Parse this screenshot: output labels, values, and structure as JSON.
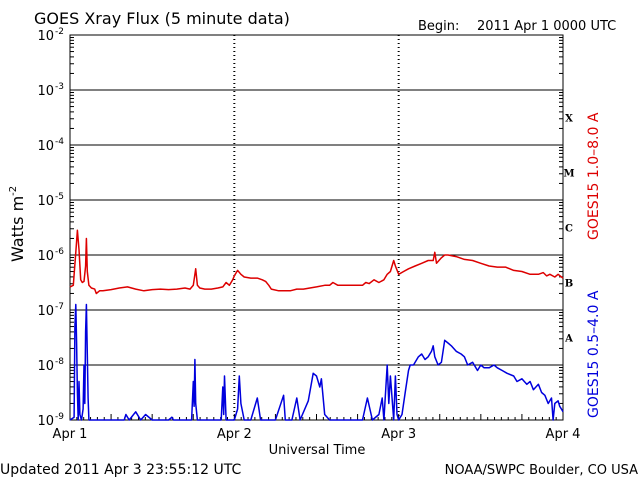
{
  "chart_data": {
    "type": "line",
    "title": "GOES Xray Flux (5 minute data)",
    "begin_label": "Begin:",
    "begin_value": "2011 Apr 1 0000 UTC",
    "xlabel": "Universal Time",
    "ylabel": "Watts m",
    "ylabel_exponent": "-2",
    "log_scale_y": true,
    "ylim_exponent": [
      -9,
      -2
    ],
    "y_ticks": [
      {
        "mant": "10",
        "exp": "-2",
        "value_exp": -2
      },
      {
        "mant": "10",
        "exp": "-3",
        "value_exp": -3
      },
      {
        "mant": "10",
        "exp": "-4",
        "value_exp": -4
      },
      {
        "mant": "10",
        "exp": "-5",
        "value_exp": -5
      },
      {
        "mant": "10",
        "exp": "-6",
        "value_exp": -6
      },
      {
        "mant": "10",
        "exp": "-7",
        "value_exp": -7
      },
      {
        "mant": "10",
        "exp": "-8",
        "value_exp": -8
      },
      {
        "mant": "10",
        "exp": "-9",
        "value_exp": -9
      }
    ],
    "xlim_days": [
      0,
      3
    ],
    "x_ticks": [
      {
        "label": "Apr 1",
        "day": 0
      },
      {
        "label": "Apr 2",
        "day": 1
      },
      {
        "label": "Apr 3",
        "day": 2
      },
      {
        "label": "Apr 4",
        "day": 3
      }
    ],
    "flare_classes": [
      {
        "label": "X",
        "value_exp": -3.5
      },
      {
        "label": "M",
        "value_exp": -4.5
      },
      {
        "label": "C",
        "value_exp": -5.5
      },
      {
        "label": "B",
        "value_exp": -6.5
      },
      {
        "label": "A",
        "value_exp": -7.5
      }
    ],
    "series": [
      {
        "name": "GOES15 1.0–8.0 A",
        "color": "#dd0000",
        "points": [
          [
            0.0,
            -6.58
          ],
          [
            0.02,
            -6.55
          ],
          [
            0.035,
            -5.95
          ],
          [
            0.045,
            -5.55
          ],
          [
            0.055,
            -5.9
          ],
          [
            0.065,
            -6.45
          ],
          [
            0.075,
            -6.5
          ],
          [
            0.085,
            -6.48
          ],
          [
            0.095,
            -6.2
          ],
          [
            0.1,
            -5.7
          ],
          [
            0.105,
            -6.3
          ],
          [
            0.115,
            -6.55
          ],
          [
            0.13,
            -6.6
          ],
          [
            0.15,
            -6.62
          ],
          [
            0.16,
            -6.7
          ],
          [
            0.18,
            -6.65
          ],
          [
            0.2,
            -6.65
          ],
          [
            0.25,
            -6.63
          ],
          [
            0.3,
            -6.6
          ],
          [
            0.35,
            -6.58
          ],
          [
            0.4,
            -6.62
          ],
          [
            0.45,
            -6.65
          ],
          [
            0.5,
            -6.63
          ],
          [
            0.55,
            -6.62
          ],
          [
            0.6,
            -6.63
          ],
          [
            0.65,
            -6.62
          ],
          [
            0.7,
            -6.6
          ],
          [
            0.73,
            -6.62
          ],
          [
            0.75,
            -6.55
          ],
          [
            0.765,
            -6.25
          ],
          [
            0.775,
            -6.55
          ],
          [
            0.79,
            -6.6
          ],
          [
            0.82,
            -6.62
          ],
          [
            0.86,
            -6.62
          ],
          [
            0.9,
            -6.6
          ],
          [
            0.93,
            -6.58
          ],
          [
            0.95,
            -6.5
          ],
          [
            0.97,
            -6.55
          ],
          [
            0.99,
            -6.45
          ],
          [
            1.0,
            -6.38
          ],
          [
            1.02,
            -6.28
          ],
          [
            1.04,
            -6.35
          ],
          [
            1.06,
            -6.4
          ],
          [
            1.1,
            -6.42
          ],
          [
            1.14,
            -6.42
          ],
          [
            1.17,
            -6.45
          ],
          [
            1.19,
            -6.48
          ],
          [
            1.21,
            -6.55
          ],
          [
            1.225,
            -6.62
          ],
          [
            1.27,
            -6.65
          ],
          [
            1.3,
            -6.65
          ],
          [
            1.34,
            -6.65
          ],
          [
            1.38,
            -6.62
          ],
          [
            1.42,
            -6.62
          ],
          [
            1.46,
            -6.6
          ],
          [
            1.5,
            -6.58
          ],
          [
            1.55,
            -6.55
          ],
          [
            1.58,
            -6.55
          ],
          [
            1.6,
            -6.5
          ],
          [
            1.63,
            -6.55
          ],
          [
            1.66,
            -6.55
          ],
          [
            1.7,
            -6.55
          ],
          [
            1.74,
            -6.55
          ],
          [
            1.78,
            -6.55
          ],
          [
            1.8,
            -6.5
          ],
          [
            1.82,
            -6.52
          ],
          [
            1.85,
            -6.45
          ],
          [
            1.88,
            -6.5
          ],
          [
            1.91,
            -6.45
          ],
          [
            1.93,
            -6.35
          ],
          [
            1.95,
            -6.3
          ],
          [
            1.97,
            -6.1
          ],
          [
            1.98,
            -6.2
          ],
          [
            2.0,
            -6.35
          ],
          [
            2.03,
            -6.3
          ],
          [
            2.06,
            -6.25
          ],
          [
            2.1,
            -6.2
          ],
          [
            2.14,
            -6.15
          ],
          [
            2.18,
            -6.1
          ],
          [
            2.21,
            -6.1
          ],
          [
            2.22,
            -5.95
          ],
          [
            2.23,
            -6.15
          ],
          [
            2.26,
            -6.05
          ],
          [
            2.28,
            -6.0
          ],
          [
            2.3,
            -6.0
          ],
          [
            2.35,
            -6.03
          ],
          [
            2.4,
            -6.08
          ],
          [
            2.45,
            -6.1
          ],
          [
            2.5,
            -6.15
          ],
          [
            2.55,
            -6.2
          ],
          [
            2.6,
            -6.22
          ],
          [
            2.65,
            -6.22
          ],
          [
            2.7,
            -6.28
          ],
          [
            2.75,
            -6.3
          ],
          [
            2.8,
            -6.35
          ],
          [
            2.85,
            -6.35
          ],
          [
            2.88,
            -6.32
          ],
          [
            2.9,
            -6.38
          ],
          [
            2.92,
            -6.35
          ],
          [
            2.95,
            -6.4
          ],
          [
            2.97,
            -6.35
          ],
          [
            3.0,
            -6.42
          ]
        ]
      },
      {
        "name": "GOES15 0.5–4.0 A",
        "color": "#0000dd",
        "points": [
          [
            0.0,
            -9.0
          ],
          [
            0.025,
            -8.95
          ],
          [
            0.03,
            -7.3
          ],
          [
            0.035,
            -6.9
          ],
          [
            0.04,
            -7.6
          ],
          [
            0.045,
            -8.5
          ],
          [
            0.05,
            -9.0
          ],
          [
            0.055,
            -8.3
          ],
          [
            0.06,
            -8.9
          ],
          [
            0.07,
            -9.0
          ],
          [
            0.08,
            -8.8
          ],
          [
            0.085,
            -8.0
          ],
          [
            0.09,
            -8.7
          ],
          [
            0.095,
            -7.4
          ],
          [
            0.1,
            -6.9
          ],
          [
            0.105,
            -7.8
          ],
          [
            0.11,
            -8.6
          ],
          [
            0.115,
            -9.0
          ],
          [
            0.15,
            -9.0
          ],
          [
            0.2,
            -9.0
          ],
          [
            0.25,
            -9.0
          ],
          [
            0.3,
            -9.0
          ],
          [
            0.33,
            -9.0
          ],
          [
            0.34,
            -8.9
          ],
          [
            0.36,
            -9.0
          ],
          [
            0.4,
            -8.85
          ],
          [
            0.43,
            -9.0
          ],
          [
            0.46,
            -8.9
          ],
          [
            0.5,
            -9.0
          ],
          [
            0.55,
            -9.0
          ],
          [
            0.6,
            -9.0
          ],
          [
            0.62,
            -8.95
          ],
          [
            0.63,
            -9.0
          ],
          [
            0.66,
            -9.0
          ],
          [
            0.7,
            -9.0
          ],
          [
            0.74,
            -9.0
          ],
          [
            0.75,
            -8.3
          ],
          [
            0.755,
            -8.75
          ],
          [
            0.76,
            -7.9
          ],
          [
            0.765,
            -8.7
          ],
          [
            0.775,
            -9.0
          ],
          [
            0.8,
            -9.0
          ],
          [
            0.85,
            -9.0
          ],
          [
            0.9,
            -9.0
          ],
          [
            0.92,
            -9.0
          ],
          [
            0.93,
            -8.4
          ],
          [
            0.935,
            -8.9
          ],
          [
            0.94,
            -8.2
          ],
          [
            0.95,
            -9.0
          ],
          [
            0.98,
            -9.0
          ],
          [
            1.0,
            -9.0
          ],
          [
            1.02,
            -8.8
          ],
          [
            1.03,
            -8.2
          ],
          [
            1.04,
            -8.7
          ],
          [
            1.06,
            -9.0
          ],
          [
            1.1,
            -9.0
          ],
          [
            1.14,
            -8.6
          ],
          [
            1.16,
            -9.0
          ],
          [
            1.2,
            -9.0
          ],
          [
            1.25,
            -9.0
          ],
          [
            1.3,
            -8.55
          ],
          [
            1.31,
            -9.0
          ],
          [
            1.35,
            -9.0
          ],
          [
            1.38,
            -8.6
          ],
          [
            1.4,
            -9.0
          ],
          [
            1.45,
            -8.65
          ],
          [
            1.48,
            -8.15
          ],
          [
            1.5,
            -8.2
          ],
          [
            1.52,
            -8.4
          ],
          [
            1.53,
            -8.25
          ],
          [
            1.55,
            -8.9
          ],
          [
            1.58,
            -9.0
          ],
          [
            1.62,
            -9.0
          ],
          [
            1.68,
            -9.0
          ],
          [
            1.74,
            -9.0
          ],
          [
            1.78,
            -9.0
          ],
          [
            1.81,
            -8.6
          ],
          [
            1.84,
            -9.0
          ],
          [
            1.88,
            -8.9
          ],
          [
            1.9,
            -8.6
          ],
          [
            1.91,
            -9.0
          ],
          [
            1.93,
            -8.0
          ],
          [
            1.94,
            -8.7
          ],
          [
            1.95,
            -8.2
          ],
          [
            1.97,
            -9.0
          ],
          [
            1.98,
            -8.2
          ],
          [
            1.99,
            -8.9
          ],
          [
            2.0,
            -9.0
          ],
          [
            2.02,
            -8.9
          ],
          [
            2.04,
            -8.5
          ],
          [
            2.06,
            -8.1
          ],
          [
            2.07,
            -8.0
          ],
          [
            2.09,
            -8.0
          ],
          [
            2.12,
            -7.85
          ],
          [
            2.14,
            -7.8
          ],
          [
            2.16,
            -7.9
          ],
          [
            2.18,
            -7.85
          ],
          [
            2.2,
            -7.75
          ],
          [
            2.21,
            -7.65
          ],
          [
            2.22,
            -7.85
          ],
          [
            2.24,
            -8.0
          ],
          [
            2.26,
            -7.95
          ],
          [
            2.28,
            -7.55
          ],
          [
            2.3,
            -7.6
          ],
          [
            2.32,
            -7.65
          ],
          [
            2.35,
            -7.75
          ],
          [
            2.38,
            -7.8
          ],
          [
            2.4,
            -7.85
          ],
          [
            2.42,
            -8.0
          ],
          [
            2.45,
            -7.95
          ],
          [
            2.48,
            -8.1
          ],
          [
            2.5,
            -8.0
          ],
          [
            2.52,
            -8.05
          ],
          [
            2.55,
            -8.05
          ],
          [
            2.58,
            -8.0
          ],
          [
            2.6,
            -8.05
          ],
          [
            2.63,
            -8.1
          ],
          [
            2.66,
            -8.15
          ],
          [
            2.7,
            -8.2
          ],
          [
            2.72,
            -8.3
          ],
          [
            2.75,
            -8.25
          ],
          [
            2.78,
            -8.35
          ],
          [
            2.8,
            -8.3
          ],
          [
            2.82,
            -8.45
          ],
          [
            2.85,
            -8.35
          ],
          [
            2.87,
            -8.5
          ],
          [
            2.89,
            -8.55
          ],
          [
            2.91,
            -8.7
          ],
          [
            2.93,
            -8.6
          ],
          [
            2.94,
            -9.0
          ],
          [
            2.95,
            -8.7
          ],
          [
            2.97,
            -8.65
          ],
          [
            2.98,
            -8.75
          ],
          [
            2.99,
            -8.8
          ],
          [
            3.0,
            -8.85
          ]
        ]
      }
    ]
  },
  "footer": {
    "updated": "Updated 2011 Apr  3 23:55:12 UTC",
    "credit": "NOAA/SWPC Boulder, CO USA"
  }
}
